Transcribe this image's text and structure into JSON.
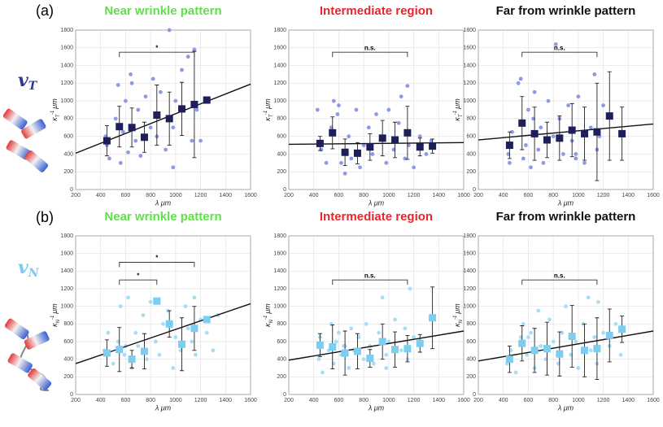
{
  "panels": [
    {
      "label": "(a)",
      "symbol": "v",
      "sub": "T",
      "color": "#2b3a9e"
    },
    {
      "label": "(b)",
      "symbol": "v",
      "sub": "N",
      "color": "#7cc9ef"
    }
  ],
  "chart_data": [
    {
      "type": "scatter",
      "title": "Near wrinkle pattern",
      "title_color": "#5fe04a",
      "xlabel": "λ μm",
      "ylabel": {
        "symbol": "κ",
        "sub": "T",
        "sup": "-1",
        "unit": "μm"
      },
      "xlim": [
        200,
        1600
      ],
      "xticks": [
        200,
        400,
        600,
        800,
        1000,
        1200,
        1400,
        1600
      ],
      "ylim": [
        0,
        1800
      ],
      "yticks": [
        0,
        200,
        400,
        600,
        800,
        1000,
        1200,
        1400,
        1600,
        1800
      ],
      "grid": true,
      "points": {
        "color": "#8c9be8",
        "x": [
          440,
          450,
          470,
          520,
          540,
          560,
          580,
          600,
          620,
          650,
          680,
          700,
          720,
          760,
          800,
          820,
          850,
          880,
          920,
          950,
          980,
          1000,
          1050,
          1100,
          1130,
          1150,
          1170,
          1200,
          980,
          640
        ],
        "y": [
          600,
          500,
          350,
          800,
          1180,
          300,
          650,
          1000,
          420,
          1200,
          550,
          900,
          380,
          1050,
          700,
          1250,
          600,
          1100,
          450,
          1800,
          700,
          1000,
          1350,
          1500,
          550,
          1580,
          900,
          550,
          250,
          1300
        ]
      },
      "means": {
        "color": "#1e1e5a",
        "x": [
          450,
          550,
          650,
          750,
          850,
          950,
          1050,
          1150,
          1250
        ],
        "y": [
          550,
          710,
          700,
          590,
          840,
          800,
          910,
          960,
          1010
        ],
        "err": [
          170,
          230,
          220,
          170,
          340,
          300,
          300,
          600,
          20
        ]
      },
      "fit": {
        "x": [
          200,
          1600
        ],
        "y": [
          410,
          1190
        ]
      },
      "brackets": [
        {
          "text": "*",
          "x": [
            550,
            1150
          ],
          "y": 1550
        }
      ]
    },
    {
      "type": "scatter",
      "title": "Intermediate region",
      "title_color": "#e8262e",
      "xlabel": "λ μm",
      "ylabel": {
        "symbol": "κ",
        "sub": "T",
        "sup": "-1",
        "unit": "μm"
      },
      "xlim": [
        200,
        1600
      ],
      "xticks": [
        200,
        400,
        600,
        800,
        1000,
        1200,
        1400,
        1600
      ],
      "ylim": [
        0,
        1800
      ],
      "yticks": [
        0,
        200,
        400,
        600,
        800,
        1000,
        1200,
        1400,
        1600,
        1800
      ],
      "grid": true,
      "points": {
        "color": "#8c9be8",
        "x": [
          430,
          460,
          500,
          540,
          560,
          590,
          620,
          650,
          680,
          700,
          740,
          770,
          800,
          840,
          870,
          900,
          940,
          980,
          1000,
          1040,
          1080,
          1100,
          1130,
          1150,
          1160,
          1200,
          1250,
          1300,
          1340,
          600
        ],
        "y": [
          900,
          450,
          300,
          700,
          1000,
          850,
          300,
          180,
          600,
          350,
          900,
          250,
          500,
          700,
          400,
          850,
          600,
          300,
          900,
          450,
          750,
          1050,
          350,
          1170,
          500,
          250,
          600,
          400,
          550,
          950
        ]
      },
      "means": {
        "color": "#1e1e5a",
        "x": [
          450,
          550,
          650,
          750,
          850,
          950,
          1050,
          1150,
          1250,
          1350
        ],
        "y": [
          520,
          640,
          420,
          410,
          480,
          580,
          560,
          640,
          480,
          490
        ],
        "err": [
          80,
          180,
          150,
          120,
          150,
          200,
          200,
          300,
          100,
          80
        ]
      },
      "fit": {
        "x": [
          200,
          1600
        ],
        "y": [
          510,
          530
        ]
      },
      "brackets": [
        {
          "text": "n.s.",
          "x": [
            550,
            1150
          ],
          "y": 1550
        }
      ]
    },
    {
      "type": "scatter",
      "title": "Far from wrinkle pattern",
      "title_color": "#111111",
      "xlabel": "λ μm",
      "ylabel": {
        "symbol": "κ",
        "sub": "T",
        "sup": "-1",
        "unit": "μm"
      },
      "xlim": [
        200,
        1600
      ],
      "xticks": [
        200,
        400,
        600,
        800,
        1000,
        1200,
        1400,
        1600
      ],
      "ylim": [
        0,
        1800
      ],
      "yticks": [
        0,
        200,
        400,
        600,
        800,
        1000,
        1200,
        1400,
        1600,
        1800
      ],
      "grid": true,
      "points": {
        "color": "#8c9be8",
        "x": [
          440,
          450,
          470,
          520,
          540,
          560,
          580,
          600,
          620,
          650,
          680,
          700,
          720,
          760,
          800,
          820,
          850,
          880,
          920,
          950,
          980,
          1000,
          1050,
          1100,
          1130,
          1150,
          1170,
          1200,
          980,
          640
        ],
        "y": [
          400,
          300,
          650,
          1200,
          1250,
          350,
          500,
          900,
          250,
          1100,
          450,
          700,
          300,
          1000,
          600,
          1640,
          800,
          400,
          950,
          550,
          350,
          1050,
          300,
          700,
          1300,
          450,
          600,
          950,
          400,
          800
        ]
      },
      "means": {
        "color": "#1e1e5a",
        "x": [
          450,
          550,
          650,
          750,
          850,
          950,
          1050,
          1150,
          1250,
          1350
        ],
        "y": [
          500,
          750,
          630,
          560,
          580,
          670,
          630,
          650,
          830,
          630
        ],
        "err": [
          150,
          300,
          300,
          200,
          250,
          300,
          300,
          550,
          500,
          300
        ]
      },
      "fit": {
        "x": [
          200,
          1600
        ],
        "y": [
          560,
          740
        ]
      },
      "brackets": [
        {
          "text": "n.s.",
          "x": [
            550,
            1150
          ],
          "y": 1550
        }
      ]
    },
    {
      "type": "scatter",
      "title": "Near wrinkle pattern",
      "title_color": "#5fe04a",
      "xlabel": "λ μm",
      "ylabel": {
        "symbol": "κ",
        "sub": "N",
        "sup": "-1",
        "unit": "μm"
      },
      "xlim": [
        200,
        1600
      ],
      "xticks": [
        200,
        400,
        600,
        800,
        1000,
        1200,
        1400,
        1600
      ],
      "ylim": [
        0,
        1800
      ],
      "yticks": [
        0,
        200,
        400,
        600,
        800,
        1000,
        1200,
        1400,
        1600,
        1800
      ],
      "grid": true,
      "points": {
        "color": "#a8ddf5",
        "x": [
          430,
          460,
          500,
          540,
          560,
          590,
          620,
          650,
          680,
          700,
          740,
          770,
          800,
          840,
          870,
          900,
          940,
          980,
          1000,
          1040,
          1080,
          1100,
          1130,
          1150,
          1160,
          1200,
          1250,
          1300,
          1340,
          600
        ],
        "y": [
          500,
          700,
          350,
          600,
          1000,
          450,
          1100,
          300,
          700,
          550,
          900,
          400,
          1050,
          600,
          450,
          800,
          950,
          300,
          650,
          500,
          1000,
          750,
          600,
          1100,
          450,
          850,
          700,
          500,
          900,
          550
        ]
      },
      "means": {
        "color": "#7ccdf0",
        "x": [
          450,
          550,
          650,
          750,
          850,
          950,
          1050,
          1150,
          1250
        ],
        "y": [
          470,
          510,
          400,
          490,
          1060,
          800,
          570,
          750,
          850
        ],
        "err": [
          150,
          250,
          100,
          200,
          20,
          150,
          300,
          250,
          20
        ]
      },
      "fit": {
        "x": [
          200,
          1600
        ],
        "y": [
          350,
          1030
        ]
      },
      "brackets": [
        {
          "text": "*",
          "x": [
            550,
            1150
          ],
          "y": 1500
        },
        {
          "text": "*",
          "x": [
            550,
            850
          ],
          "y": 1300
        }
      ]
    },
    {
      "type": "scatter",
      "title": "Intermediate region",
      "title_color": "#e8262e",
      "xlabel": "λ μm",
      "ylabel": {
        "symbol": "κ",
        "sub": "N",
        "sup": "-1",
        "unit": "μm"
      },
      "xlim": [
        200,
        1600
      ],
      "xticks": [
        200,
        400,
        600,
        800,
        1000,
        1200,
        1400,
        1600
      ],
      "ylim": [
        0,
        1800
      ],
      "yticks": [
        0,
        200,
        400,
        600,
        800,
        1000,
        1200,
        1400,
        1600,
        1800
      ],
      "grid": true,
      "points": {
        "color": "#a8ddf5",
        "x": [
          440,
          450,
          470,
          520,
          540,
          560,
          580,
          600,
          620,
          650,
          680,
          700,
          720,
          760,
          800,
          820,
          850,
          880,
          920,
          950,
          980,
          1000,
          1050,
          1100,
          1130,
          1150,
          1170,
          1200,
          980,
          640
        ],
        "y": [
          400,
          650,
          250,
          500,
          800,
          350,
          600,
          700,
          450,
          550,
          300,
          750,
          500,
          650,
          400,
          800,
          550,
          350,
          700,
          1100,
          450,
          600,
          850,
          500,
          750,
          400,
          1200,
          650,
          300,
          550
        ]
      },
      "means": {
        "color": "#7ccdf0",
        "x": [
          450,
          550,
          650,
          750,
          850,
          950,
          1050,
          1150,
          1250,
          1350
        ],
        "y": [
          560,
          540,
          470,
          490,
          410,
          600,
          510,
          520,
          580,
          870
        ],
        "err": [
          130,
          250,
          250,
          200,
          100,
          200,
          200,
          150,
          100,
          350
        ]
      },
      "fit": {
        "x": [
          200,
          1600
        ],
        "y": [
          390,
          720
        ]
      },
      "brackets": [
        {
          "text": "n.s.",
          "x": [
            550,
            1150
          ],
          "y": 1300
        }
      ]
    },
    {
      "type": "scatter",
      "title": "Far from wrinkle pattern",
      "title_color": "#111111",
      "xlabel": "λ μm",
      "ylabel": {
        "symbol": "κ",
        "sub": "N",
        "sup": "-1",
        "unit": "μm"
      },
      "xlim": [
        200,
        1600
      ],
      "xticks": [
        200,
        400,
        600,
        800,
        1000,
        1200,
        1400,
        1600
      ],
      "ylim": [
        0,
        1800
      ],
      "yticks": [
        0,
        200,
        400,
        600,
        800,
        1000,
        1200,
        1400,
        1600,
        1800
      ],
      "grid": true,
      "points": {
        "color": "#a8ddf5",
        "x": [
          430,
          460,
          500,
          540,
          560,
          590,
          620,
          650,
          680,
          700,
          740,
          770,
          800,
          840,
          870,
          900,
          940,
          980,
          1000,
          1040,
          1080,
          1100,
          1130,
          1150,
          1160,
          1200,
          1250,
          1300,
          1340,
          600
        ],
        "y": [
          350,
          500,
          250,
          650,
          800,
          450,
          700,
          300,
          950,
          550,
          400,
          850,
          600,
          350,
          700,
          1000,
          450,
          600,
          300,
          800,
          1100,
          500,
          650,
          350,
          1050,
          700,
          550,
          800,
          450,
          650
        ]
      },
      "means": {
        "color": "#7ccdf0",
        "x": [
          450,
          550,
          650,
          750,
          850,
          950,
          1050,
          1150,
          1250,
          1350
        ],
        "y": [
          400,
          580,
          500,
          520,
          460,
          660,
          500,
          520,
          670,
          740
        ],
        "err": [
          150,
          200,
          250,
          300,
          250,
          350,
          300,
          350,
          300,
          150
        ]
      },
      "fit": {
        "x": [
          200,
          1600
        ],
        "y": [
          380,
          720
        ]
      },
      "brackets": [
        {
          "text": "n.s.",
          "x": [
            550,
            1150
          ],
          "y": 1300
        }
      ]
    }
  ]
}
